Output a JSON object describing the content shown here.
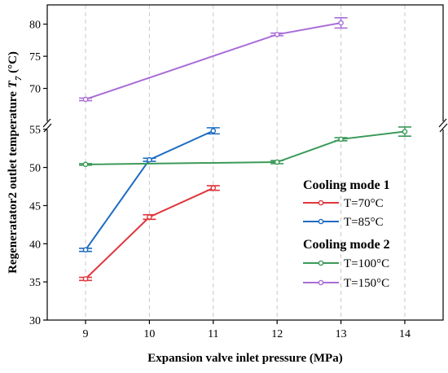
{
  "chart_data": {
    "type": "line",
    "xlabel": "Expansion valve inlet pressure (MPa)",
    "ylabel_main": "Regeneratator2 outlet temperature ",
    "ylabel_symbol": "T",
    "ylabel_sub": "7",
    "ylabel_unit": " (°C)",
    "xlim": [
      8.4,
      14.6
    ],
    "x_ticks": [
      9,
      10,
      11,
      12,
      13,
      14
    ],
    "y_lower_range": [
      30,
      57
    ],
    "y_upper_range": [
      65,
      83
    ],
    "y_ticks_lower": [
      30,
      35,
      40,
      45,
      50,
      55
    ],
    "y_ticks_upper": [
      70,
      75,
      80
    ],
    "axis_break": true,
    "vertical_grid": true,
    "legend": {
      "placement": "lower-right",
      "groups": [
        {
          "title": "Cooling mode 1",
          "entries": [
            "T=70°C",
            "T=85°C"
          ]
        },
        {
          "title": "Cooling mode 2",
          "entries": [
            "T=100°C",
            "T=150°C"
          ]
        }
      ]
    },
    "series": [
      {
        "name": "T=70°C",
        "color": "#e0363c",
        "x": [
          9,
          10,
          11
        ],
        "y": [
          35.4,
          43.5,
          47.3
        ],
        "err": [
          0.2,
          0.3,
          0.3
        ]
      },
      {
        "name": "T=85°C",
        "color": "#1e6bc2",
        "x": [
          9,
          10,
          11
        ],
        "y": [
          39.2,
          51.0,
          54.8
        ],
        "err": [
          0.2,
          0.2,
          0.4
        ]
      },
      {
        "name": "T=100°C",
        "color": "#3a9a58",
        "x": [
          9,
          12,
          13,
          14
        ],
        "y": [
          50.4,
          50.7,
          53.7,
          54.7
        ],
        "err": [
          0.1,
          0.2,
          0.2,
          0.6
        ]
      },
      {
        "name": "T=150°C",
        "color": "#a96dd8",
        "x": [
          9,
          12,
          13
        ],
        "y": [
          68.3,
          78.4,
          80.2
        ],
        "err": [
          0.2,
          0.2,
          0.8
        ]
      }
    ]
  }
}
